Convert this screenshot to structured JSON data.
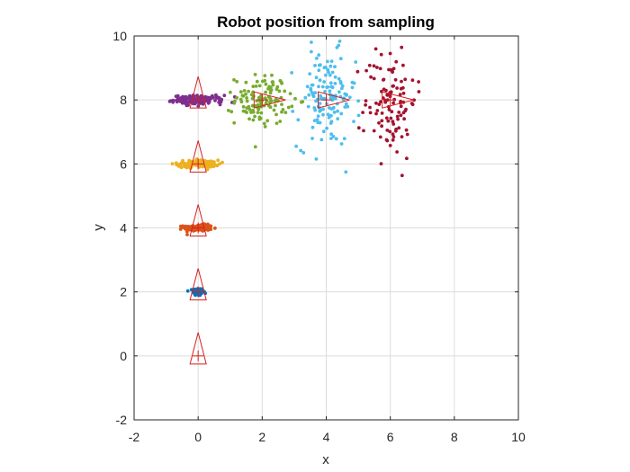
{
  "chart_data": {
    "type": "scatter",
    "title": "Robot position from sampling",
    "xlabel": "x",
    "ylabel": "y",
    "xlim": [
      -2,
      10
    ],
    "ylim": [
      -2,
      10
    ],
    "x_ticks": [
      -2,
      0,
      2,
      4,
      6,
      8,
      10
    ],
    "y_ticks": [
      -2,
      0,
      2,
      4,
      6,
      8,
      10
    ],
    "x_tick_labels": [
      "-2",
      "0",
      "2",
      "4",
      "6",
      "8",
      "10"
    ],
    "y_tick_labels": [
      "-2",
      "0",
      "2",
      "4",
      "6",
      "8",
      "10"
    ],
    "grid": true,
    "legend": "none",
    "series": [
      {
        "color": "#0072BD",
        "center": [
          0,
          2
        ],
        "spread": [
          0.08,
          0.06
        ],
        "count": 120
      },
      {
        "color": "#D95319",
        "center": [
          0,
          4
        ],
        "spread": [
          0.22,
          0.05
        ],
        "count": 140
      },
      {
        "color": "#EDB120",
        "center": [
          0,
          6
        ],
        "spread": [
          0.32,
          0.06
        ],
        "count": 140
      },
      {
        "color": "#7E2F8E",
        "center": [
          0,
          8
        ],
        "spread": [
          0.38,
          0.07
        ],
        "count": 150
      },
      {
        "color": "#77AC30",
        "center": [
          2,
          8
        ],
        "spread": [
          0.42,
          0.38
        ],
        "count": 120
      },
      {
        "color": "#4DBEEE",
        "center": [
          4,
          8
        ],
        "spread": [
          0.45,
          0.75
        ],
        "count": 140
      },
      {
        "color": "#A2142F",
        "center": [
          6,
          8
        ],
        "spread": [
          0.4,
          0.9
        ],
        "count": 110
      }
    ],
    "robot_poses": [
      {
        "x": 0,
        "y": 0,
        "heading": "up"
      },
      {
        "x": 0,
        "y": 2,
        "heading": "up"
      },
      {
        "x": 0,
        "y": 4,
        "heading": "up"
      },
      {
        "x": 0,
        "y": 6,
        "heading": "up"
      },
      {
        "x": 0,
        "y": 8,
        "heading": "up"
      },
      {
        "x": 2,
        "y": 8,
        "heading": "right"
      },
      {
        "x": 4,
        "y": 8,
        "heading": "right"
      },
      {
        "x": 6,
        "y": 8,
        "heading": "right"
      }
    ],
    "robot_marker_color": "#D62020"
  }
}
